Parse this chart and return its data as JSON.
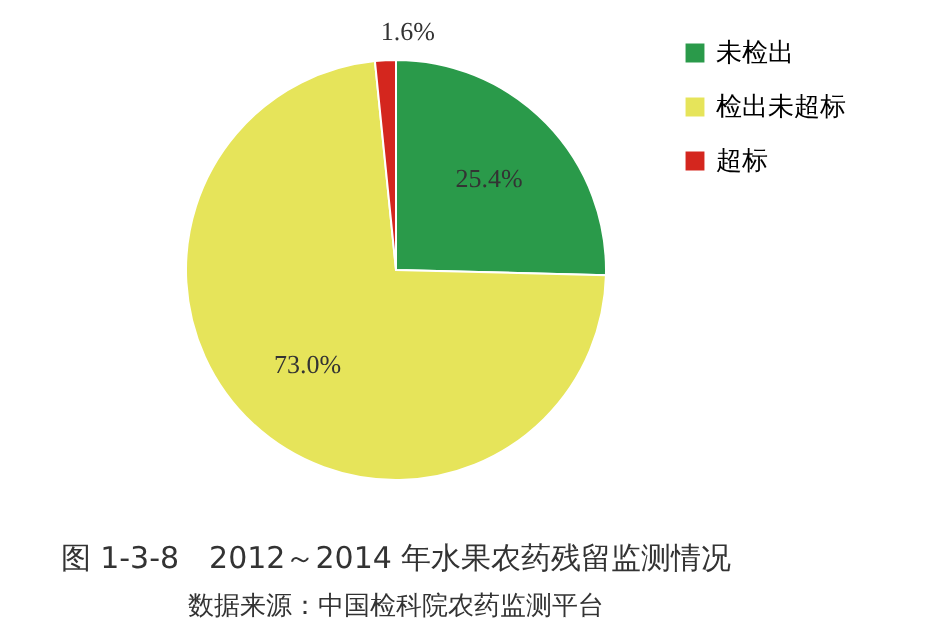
{
  "chart_data": {
    "type": "pie",
    "title": "图 1-3-8　2012～2014 年水果农药残留监测情况",
    "subtitle": "数据来源：中国检科院农药监测平台",
    "categories": [
      "未检出",
      "检出未超标",
      "超标"
    ],
    "values": [
      25.4,
      73.0,
      1.6
    ],
    "value_labels": [
      "25.4%",
      "73.0%",
      "1.6%"
    ],
    "colors": [
      "#2a9a4a",
      "#e6e45a",
      "#d4261e"
    ],
    "legend": "right"
  }
}
